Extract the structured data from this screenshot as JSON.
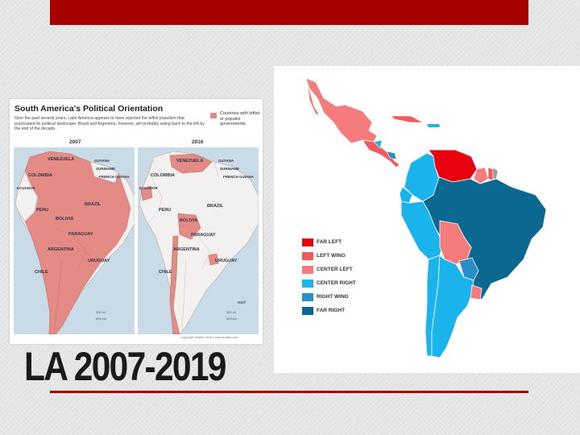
{
  "slide": {
    "title": "LA 2007-2019",
    "accent_color": "#a60000"
  },
  "infographic": {
    "title": "South America's Political Orientation",
    "description": "Over the past several years, Latin America appears to have rejected the leftist populism that punctuated its political landscape. Brazil and Argentina, however, will probably swing back to the left by the end of the decade.",
    "legend_label": "Countries with leftist or populist governments",
    "legend_color": "#e38b84",
    "maps": [
      {
        "year": "2007",
        "labels": [
          "VENEZUELA",
          "GUYANA",
          "SURINAME",
          "FRENCH GUIANA",
          "COLOMBIA",
          "ECUADOR",
          "PERU",
          "BRAZIL",
          "BOLIVIA",
          "PARAGUAY",
          "ARGENTINA",
          "URUGUAY",
          "CHILE"
        ]
      },
      {
        "year": "2016",
        "labels": [
          "VENEZUELA",
          "GUYANA",
          "SURINAME",
          "FRENCH GUIANA",
          "COLOMBIA",
          "ECUADOR",
          "PERU",
          "BRAZIL",
          "BOLIVIA",
          "PARAGUAY",
          "ARGENTINA",
          "URUGUAY",
          "CHILE"
        ]
      }
    ],
    "scale_km": "300 mi",
    "scale_mi": "600 km",
    "esri": "esri",
    "copyright": "Copyright Stratfor 2016 | www.stratfor.com"
  },
  "political_map": {
    "legend": [
      {
        "label": "FAR LEFT",
        "color": "#e8000f"
      },
      {
        "label": "LEFT WING",
        "color": "#f25a5a"
      },
      {
        "label": "CENTER LEFT",
        "color": "#f47c7c"
      },
      {
        "label": "CENTER RIGHT",
        "color": "#1ab3ec"
      },
      {
        "label": "RIGHT WING",
        "color": "#2a8fc8"
      },
      {
        "label": "FAR RIGHT",
        "color": "#0b6891"
      }
    ]
  }
}
